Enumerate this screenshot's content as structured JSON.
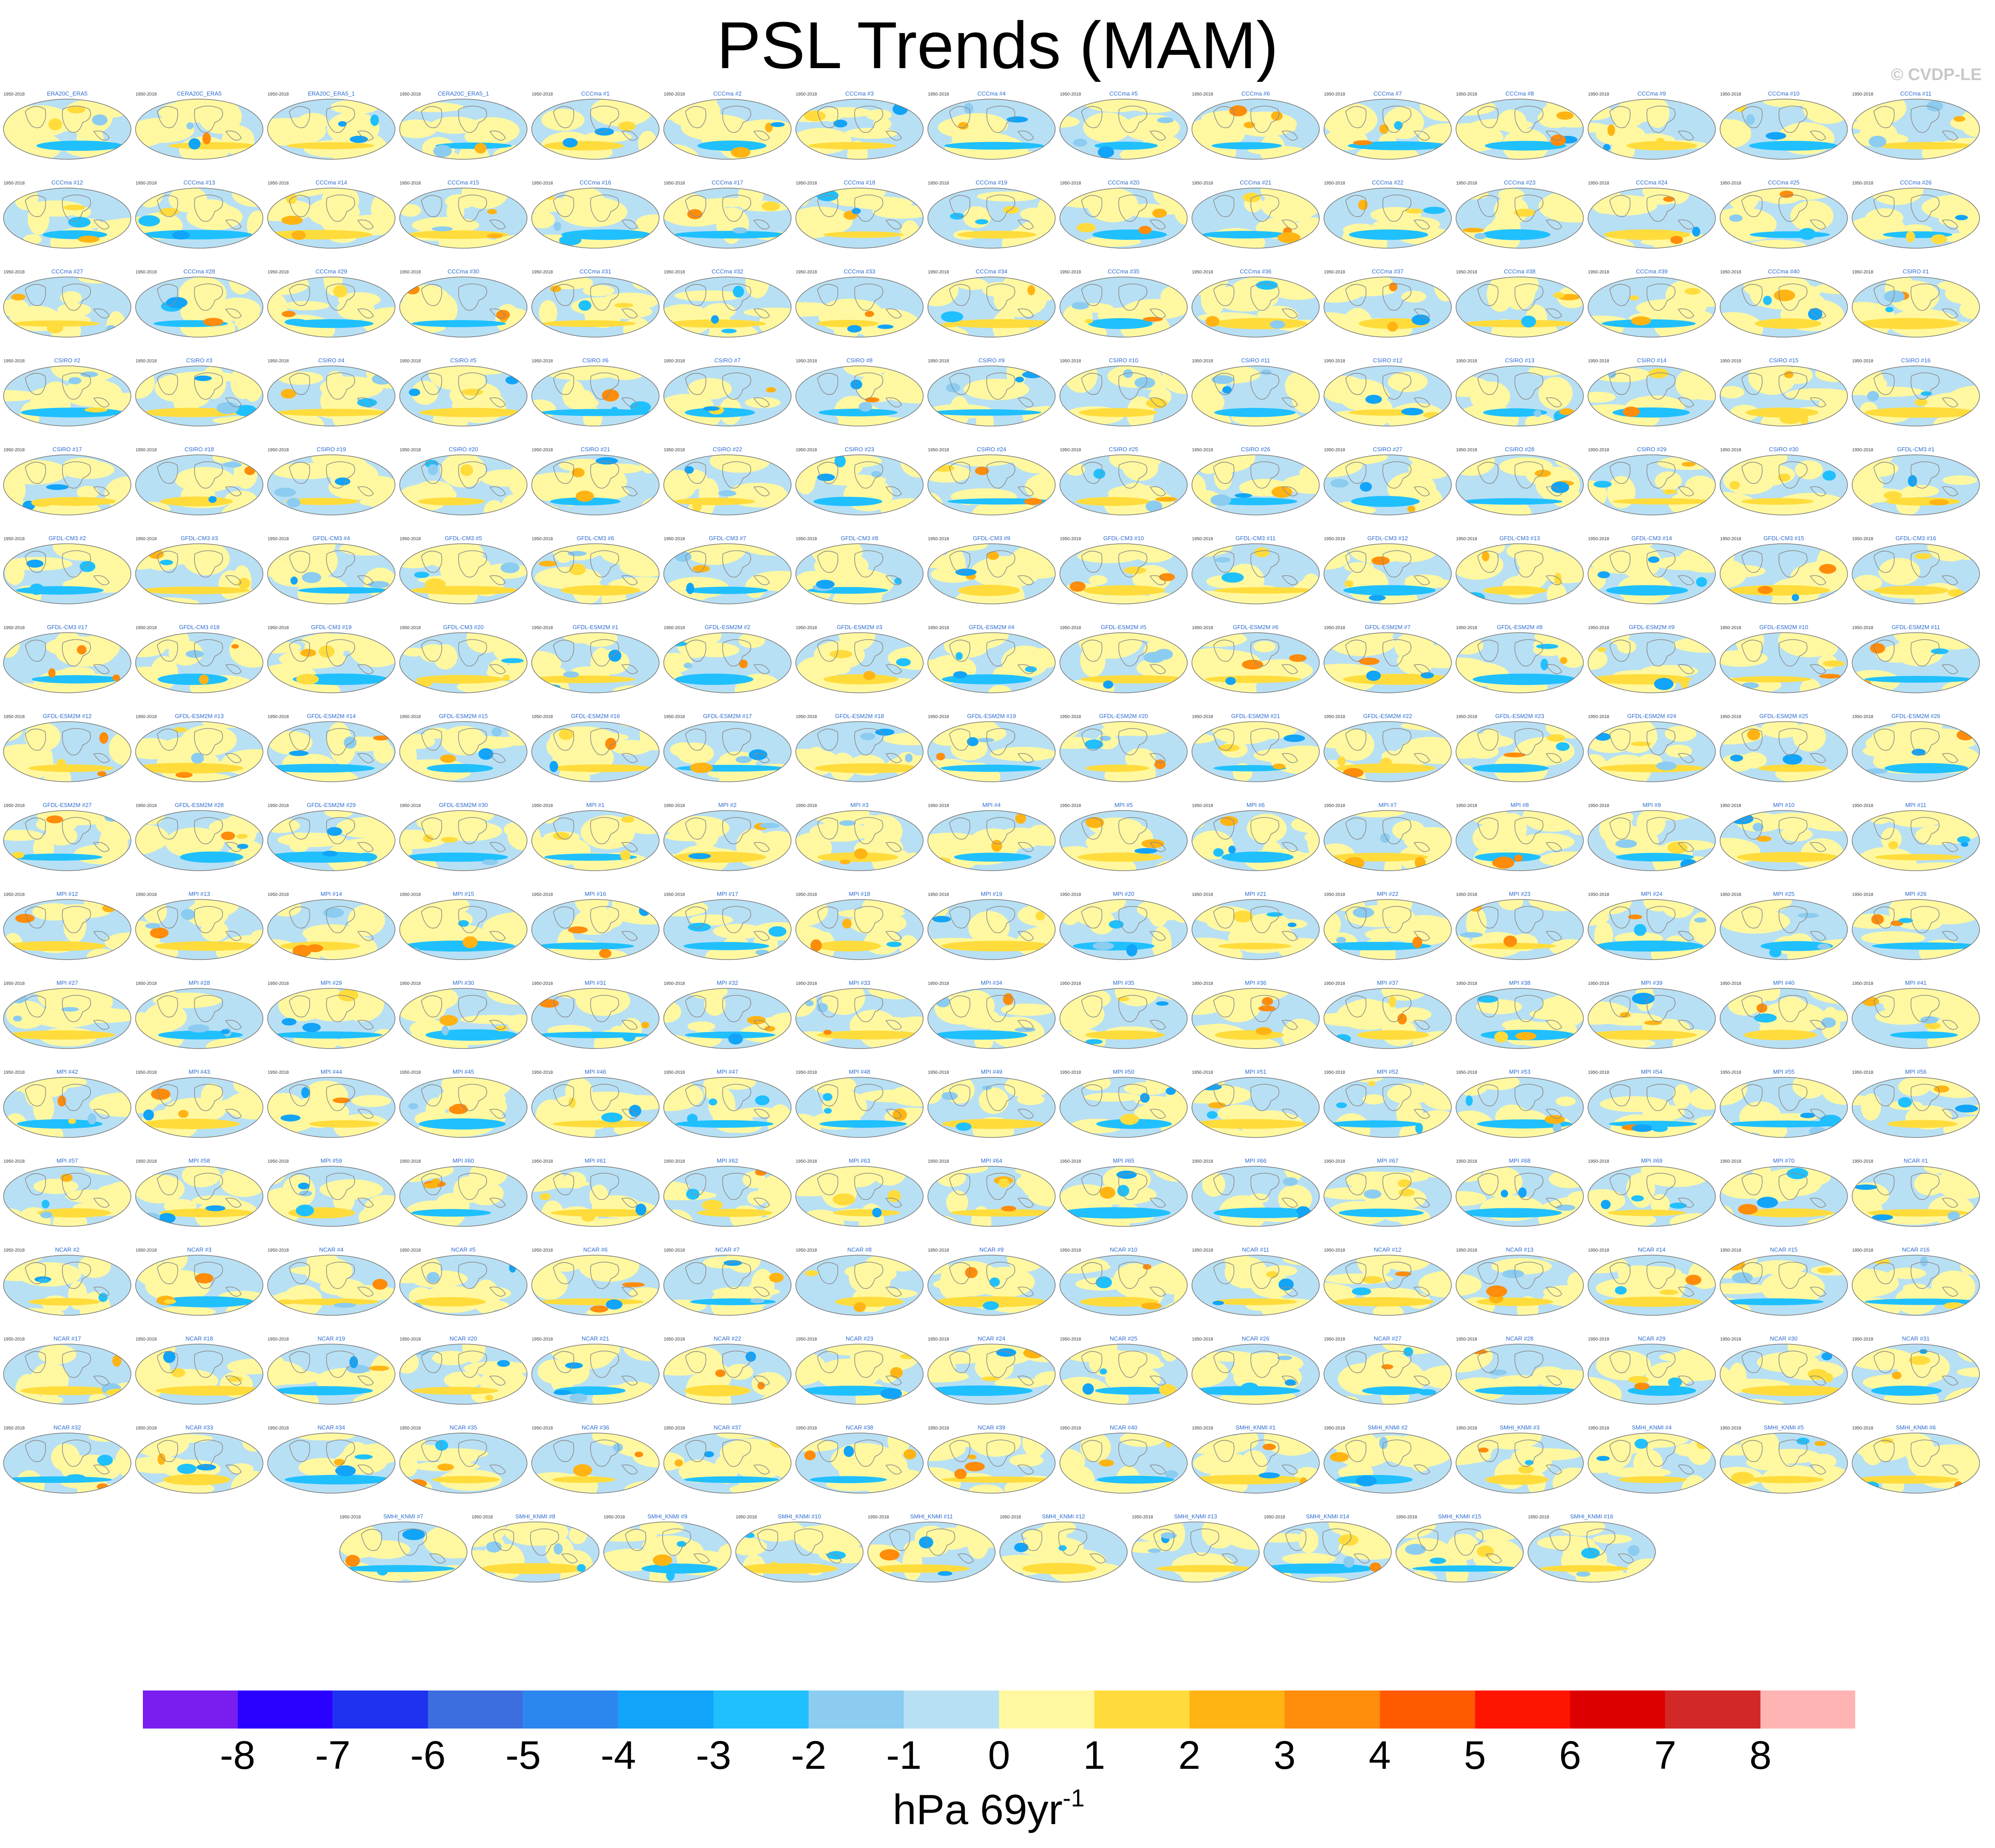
{
  "title": "PSL Trends (MAM)",
  "credit": "© CVDP-LE",
  "colors": {
    "land": "#8a8a8a",
    "levels": [
      "#7a1ef0",
      "#2a00ff",
      "#1e32f0",
      "#3c6ee0",
      "#2c86f0",
      "#12a4f8",
      "#20c0ff",
      "#8cccf0",
      "#b8e0f4",
      "#fff8a0",
      "#ffdc3c",
      "#ffb414",
      "#ff8c0a",
      "#ff5a00",
      "#ff1400",
      "#dc0000",
      "#d22828",
      "#ffb4b4"
    ]
  },
  "chart_data": {
    "type": "heatmap",
    "description_of_layout": "ensemble of global map panels",
    "panel_titles": [
      "ERA20C_ERA5",
      "CERA20C_ERA5",
      "ERA20C_ERA5_1",
      "CERA20C_ERA5_1",
      "CCCma #1",
      "CCCma #2",
      "CCCma #3",
      "CCCma #4",
      "CCCma #5",
      "CCCma #6",
      "CCCma #7",
      "CCCma #8",
      "CCCma #9",
      "CCCma #10",
      "CCCma #11",
      "CCCma #12",
      "CCCma #13",
      "CCCma #14",
      "CCCma #15",
      "CCCma #16",
      "CCCma #17",
      "CCCma #18",
      "CCCma #19",
      "CCCma #20",
      "CCCma #21",
      "CCCma #22",
      "CCCma #23",
      "CCCma #24",
      "CCCma #25",
      "CCCma #26",
      "CCCma #27",
      "CCCma #28",
      "CCCma #29",
      "CCCma #30",
      "CCCma #31",
      "CCCma #32",
      "CCCma #33",
      "CCCma #34",
      "CCCma #35",
      "CCCma #36",
      "CCCma #37",
      "CCCma #38",
      "CCCma #39",
      "CCCma #40",
      "CSIRO #1",
      "CSIRO #2",
      "CSIRO #3",
      "CSIRO #4",
      "CSIRO #5",
      "CSIRO #6",
      "CSIRO #7",
      "CSIRO #8",
      "CSIRO #9",
      "CSIRO #10",
      "CSIRO #11",
      "CSIRO #12",
      "CSIRO #13",
      "CSIRO #14",
      "CSIRO #15",
      "CSIRO #16",
      "CSIRO #17",
      "CSIRO #18",
      "CSIRO #19",
      "CSIRO #20",
      "CSIRO #21",
      "CSIRO #22",
      "CSIRO #23",
      "CSIRO #24",
      "CSIRO #25",
      "CSIRO #26",
      "CSIRO #27",
      "CSIRO #28",
      "CSIRO #29",
      "CSIRO #30",
      "GFDL-CM3 #1",
      "GFDL-CM3 #2",
      "GFDL-CM3 #3",
      "GFDL-CM3 #4",
      "GFDL-CM3 #5",
      "GFDL-CM3 #6",
      "GFDL-CM3 #7",
      "GFDL-CM3 #8",
      "GFDL-CM3 #9",
      "GFDL-CM3 #10",
      "GFDL-CM3 #11",
      "GFDL-CM3 #12",
      "GFDL-CM3 #13",
      "GFDL-CM3 #14",
      "GFDL-CM3 #15",
      "GFDL-CM3 #16",
      "GFDL-CM3 #17",
      "GFDL-CM3 #18",
      "GFDL-CM3 #19",
      "GFDL-CM3 #20",
      "GFDL-ESM2M #1",
      "GFDL-ESM2M #2",
      "GFDL-ESM2M #3",
      "GFDL-ESM2M #4",
      "GFDL-ESM2M #5",
      "GFDL-ESM2M #6",
      "GFDL-ESM2M #7",
      "GFDL-ESM2M #8",
      "GFDL-ESM2M #9",
      "GFDL-ESM2M #10",
      "GFDL-ESM2M #11",
      "GFDL-ESM2M #12",
      "GFDL-ESM2M #13",
      "GFDL-ESM2M #14",
      "GFDL-ESM2M #15",
      "GFDL-ESM2M #16",
      "GFDL-ESM2M #17",
      "GFDL-ESM2M #18",
      "GFDL-ESM2M #19",
      "GFDL-ESM2M #20",
      "GFDL-ESM2M #21",
      "GFDL-ESM2M #22",
      "GFDL-ESM2M #23",
      "GFDL-ESM2M #24",
      "GFDL-ESM2M #25",
      "GFDL-ESM2M #26",
      "GFDL-ESM2M #27",
      "GFDL-ESM2M #28",
      "GFDL-ESM2M #29",
      "GFDL-ESM2M #30",
      "MPI #1",
      "MPI #2",
      "MPI #3",
      "MPI #4",
      "MPI #5",
      "MPI #6",
      "MPI #7",
      "MPI #8",
      "MPI #9",
      "MPI #10",
      "MPI #11",
      "MPI #12",
      "MPI #13",
      "MPI #14",
      "MPI #15",
      "MPI #16",
      "MPI #17",
      "MPI #18",
      "MPI #19",
      "MPI #20",
      "MPI #21",
      "MPI #22",
      "MPI #23",
      "MPI #24",
      "MPI #25",
      "MPI #26",
      "MPI #27",
      "MPI #28",
      "MPI #29",
      "MPI #30",
      "MPI #31",
      "MPI #32",
      "MPI #33",
      "MPI #34",
      "MPI #35",
      "MPI #36",
      "MPI #37",
      "MPI #38",
      "MPI #39",
      "MPI #40",
      "MPI #41",
      "MPI #42",
      "MPI #43",
      "MPI #44",
      "MPI #45",
      "MPI #46",
      "MPI #47",
      "MPI #48",
      "MPI #49",
      "MPI #50",
      "MPI #51",
      "MPI #52",
      "MPI #53",
      "MPI #54",
      "MPI #55",
      "MPI #56",
      "MPI #57",
      "MPI #58",
      "MPI #59",
      "MPI #60",
      "MPI #61",
      "MPI #62",
      "MPI #63",
      "MPI #64",
      "MPI #65",
      "MPI #66",
      "MPI #67",
      "MPI #68",
      "MPI #69",
      "MPI #70",
      "NCAR #1",
      "NCAR #2",
      "NCAR #3",
      "NCAR #4",
      "NCAR #5",
      "NCAR #6",
      "NCAR #7",
      "NCAR #8",
      "NCAR #9",
      "NCAR #10",
      "NCAR #11",
      "NCAR #12",
      "NCAR #13",
      "NCAR #14",
      "NCAR #15",
      "NCAR #16",
      "NCAR #17",
      "NCAR #18",
      "NCAR #19",
      "NCAR #20",
      "NCAR #21",
      "NCAR #22",
      "NCAR #23",
      "NCAR #24",
      "NCAR #25",
      "NCAR #26",
      "NCAR #27",
      "NCAR #28",
      "NCAR #29",
      "NCAR #30",
      "NCAR #31",
      "NCAR #32",
      "NCAR #33",
      "NCAR #34",
      "NCAR #35",
      "NCAR #36",
      "NCAR #37",
      "NCAR #38",
      "NCAR #39",
      "NCAR #40",
      "SMHI_KNMI #1",
      "SMHI_KNMI #2",
      "SMHI_KNMI #3",
      "SMHI_KNMI #4",
      "SMHI_KNMI #5",
      "SMHI_KNMI #6",
      "SMHI_KNMI #7",
      "SMHI_KNMI #8",
      "SMHI_KNMI #9",
      "SMHI_KNMI #10",
      "SMHI_KNMI #11",
      "SMHI_KNMI #12",
      "SMHI_KNMI #13",
      "SMHI_KNMI #14",
      "SMHI_KNMI #15",
      "SMHI_KNMI #16"
    ],
    "period_label": "1950-2018",
    "colorbar": {
      "ticks": [
        "-8",
        "-7",
        "-6",
        "-5",
        "-4",
        "-3",
        "-2",
        "-1",
        "0",
        "1",
        "2",
        "3",
        "4",
        "5",
        "6",
        "7",
        "8"
      ],
      "units": "hPa 69yr",
      "units_superscript": "-1"
    }
  }
}
